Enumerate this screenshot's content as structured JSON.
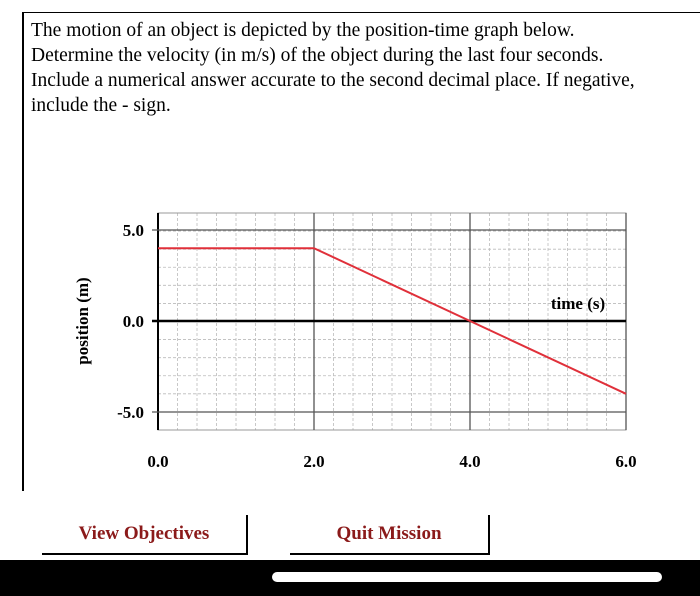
{
  "question": {
    "lines": [
      "The motion of an object is depicted by the position-time graph below.",
      "Determine the velocity (in m/s) of the object during the last four seconds.",
      "Include a numerical answer accurate to the second decimal place.  If negative,",
      "include the - sign."
    ]
  },
  "buttons": {
    "view_objectives": "View Objectives",
    "quit_mission": "Quit Mission"
  },
  "colors": {
    "line": "#e0303a",
    "button_text": "#8b1a1a",
    "grid": "#bbbbbb"
  },
  "chart_data": {
    "type": "line",
    "xlabel": "time (s)",
    "ylabel": "position (m)",
    "xlim": [
      0,
      6
    ],
    "ylim": [
      -5,
      5
    ],
    "x_ticks": [
      0,
      2,
      4,
      6
    ],
    "x_tick_labels": [
      "0.0",
      "2.0",
      "4.0",
      "6.0"
    ],
    "y_ticks": [
      5,
      0,
      -5
    ],
    "y_tick_labels": [
      "5.0",
      "0.0",
      "-5.0"
    ],
    "grid": true,
    "series": [
      {
        "x": [
          0,
          2,
          4,
          6
        ],
        "y": [
          4,
          4,
          0,
          -4
        ]
      }
    ]
  }
}
